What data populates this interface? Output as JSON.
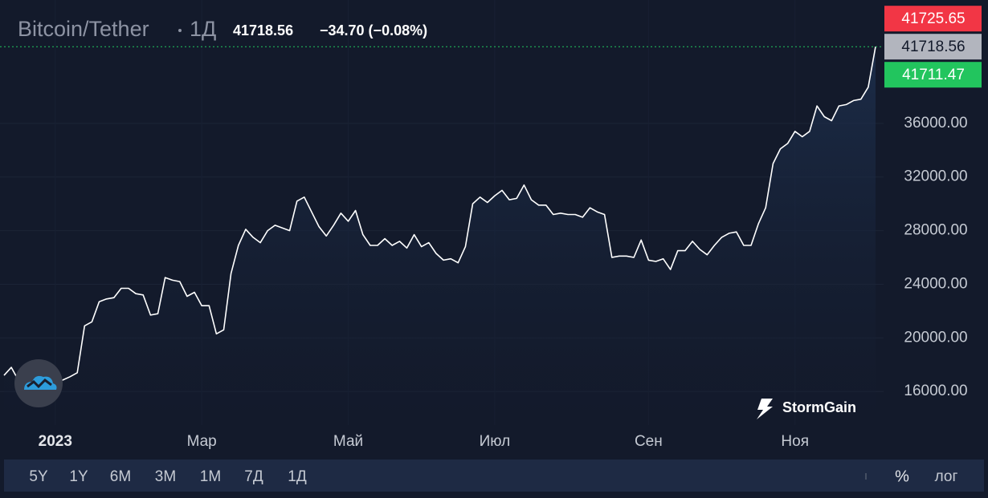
{
  "chart_data": {
    "type": "line",
    "title": "Bitcoin/Tether",
    "interval": "1Д",
    "price": "41718.56",
    "change": "−34.70 (−0.08%)",
    "categories": [
      null,
      null,
      null,
      null,
      null,
      null,
      null,
      "2023",
      null,
      null,
      null,
      null,
      null,
      null,
      null,
      null,
      null,
      null,
      null,
      null,
      null,
      null,
      null,
      null,
      null,
      null,
      null,
      "Мар",
      null,
      null,
      null,
      null,
      null,
      null,
      null,
      null,
      null,
      null,
      null,
      null,
      null,
      null,
      null,
      null,
      null,
      null,
      null,
      "Май",
      null,
      null,
      null,
      null,
      null,
      null,
      null,
      null,
      null,
      null,
      null,
      null,
      null,
      null,
      null,
      null,
      null,
      null,
      null,
      "Июл",
      null,
      null,
      null,
      null,
      null,
      null,
      null,
      null,
      null,
      null,
      null,
      null,
      null,
      null,
      null,
      null,
      null,
      null,
      null,
      null,
      "Сен",
      null,
      null,
      null,
      null,
      null,
      null,
      null,
      null,
      null,
      null,
      null,
      null,
      null,
      null,
      null,
      null,
      null,
      null,
      null,
      "Ноя",
      null,
      null,
      null,
      null,
      null,
      null,
      null,
      null,
      null,
      null,
      null
    ],
    "series": [
      {
        "color": "#ffffff",
        "values": [
          17200,
          17800,
          16800,
          16800,
          16850,
          16700,
          16600,
          16700,
          16850,
          17100,
          17400,
          20900,
          21200,
          22700,
          22900,
          23000,
          23700,
          23700,
          23300,
          23200,
          21700,
          21800,
          24500,
          24300,
          24200,
          23100,
          23400,
          22400,
          22400,
          20300,
          20600,
          24800,
          26900,
          28100,
          27500,
          27100,
          28000,
          28400,
          28200,
          28000,
          30200,
          30500,
          29400,
          28300,
          27600,
          28400,
          29300,
          28700,
          29500,
          27700,
          26900,
          26900,
          27400,
          26900,
          27200,
          26700,
          27700,
          26800,
          27100,
          26300,
          25800,
          25900,
          25600,
          26800,
          30000,
          30500,
          30100,
          30600,
          31000,
          30300,
          30400,
          31400,
          30300,
          29900,
          29900,
          29200,
          29300,
          29200,
          29200,
          29000,
          29700,
          29400,
          29200,
          26000,
          26100,
          26100,
          26000,
          27300,
          25800,
          25700,
          25900,
          25100,
          26500,
          26500,
          27200,
          26600,
          26200,
          26900,
          27500,
          27800,
          27900,
          26900,
          26900,
          28500,
          29700,
          33000,
          34100,
          34500,
          35400,
          35000,
          35400,
          37300,
          36500,
          36200,
          37300,
          37400,
          37700,
          37800,
          38700,
          41718.56
        ]
      }
    ],
    "ylim": [
      13500,
      45200
    ],
    "yticks": [
      {
        "value": 16000,
        "label": "16000.00"
      },
      {
        "value": 20000,
        "label": "20000.00"
      },
      {
        "value": 24000,
        "label": "24000.00"
      },
      {
        "value": 28000,
        "label": "28000.00"
      },
      {
        "value": 32000,
        "label": "32000.00"
      },
      {
        "value": 36000,
        "label": "36000.00"
      }
    ],
    "grid": true,
    "ask": 41725.65,
    "ask_color": "#f23645",
    "last": 41718.56,
    "last_color": "#b2b5be",
    "bid": 41711.47,
    "bid_color": "#22c55e",
    "brand": "StormGain",
    "ranges": [
      "5Y",
      "1Y",
      "6M",
      "3M",
      "1M",
      "7Д",
      "1Д"
    ],
    "percent": "%",
    "log": "лог"
  }
}
